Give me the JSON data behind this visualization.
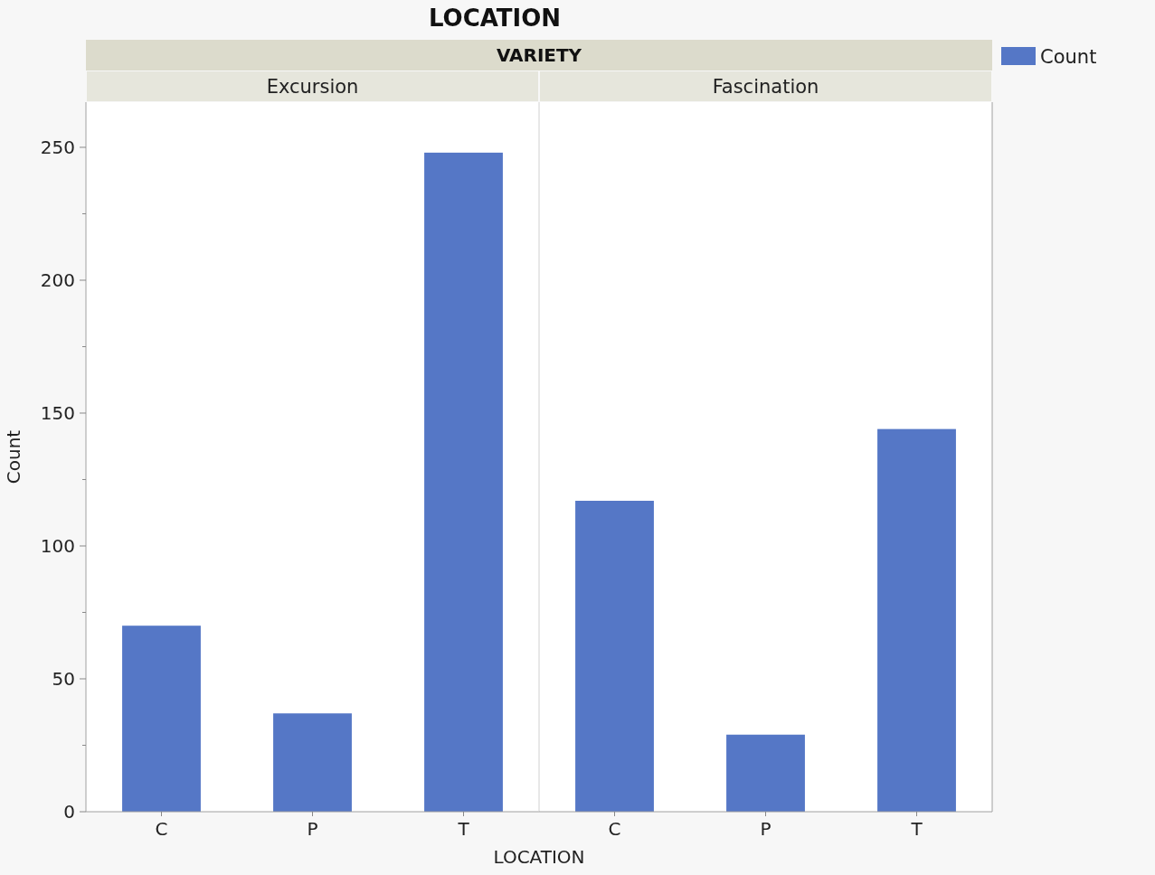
{
  "chart_data": [
    {
      "type": "bar",
      "title": "Excursion",
      "annotations": [
        "LOCATION",
        "VARIETY"
      ],
      "xlabel": "LOCATION",
      "ylabel": "Count",
      "categories": [
        "C",
        "P",
        "T"
      ],
      "series": [
        {
          "color": "#5577c6",
          "values": [
            70,
            37,
            248
          ]
        }
      ],
      "ylim": [
        0,
        267
      ],
      "yticks": [
        0,
        {
          "value": 25,
          "label": null
        },
        50,
        {
          "value": 75,
          "label": null
        },
        100,
        {
          "value": 125,
          "label": null
        },
        150,
        {
          "value": 175,
          "label": null
        },
        200,
        {
          "value": 225,
          "label": null
        },
        250
      ],
      "legend": false
    },
    {
      "type": "bar",
      "title": "Fascination",
      "categories": [
        "C",
        "P",
        "T"
      ],
      "series": [
        {
          "name": "Count",
          "color": "#5577c6",
          "values": [
            117,
            29,
            144
          ]
        }
      ],
      "ylim": [
        0,
        267
      ],
      "tick_labels": "x",
      "legend": "right"
    }
  ]
}
